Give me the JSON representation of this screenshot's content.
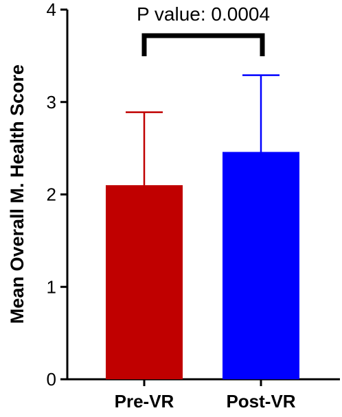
{
  "chart_data": {
    "type": "bar",
    "categories": [
      "Pre-VR",
      "Post-VR"
    ],
    "values": [
      2.1,
      2.46
    ],
    "error_upper": [
      2.89,
      3.29
    ],
    "colors": [
      "#c00000",
      "#0000ff"
    ],
    "ylabel": "Mean Overall M. Health Score",
    "ylim": [
      0,
      4
    ],
    "yticks": [
      0,
      1,
      2,
      3,
      4
    ],
    "grid": false,
    "annotation": "P value: 0.0004"
  }
}
